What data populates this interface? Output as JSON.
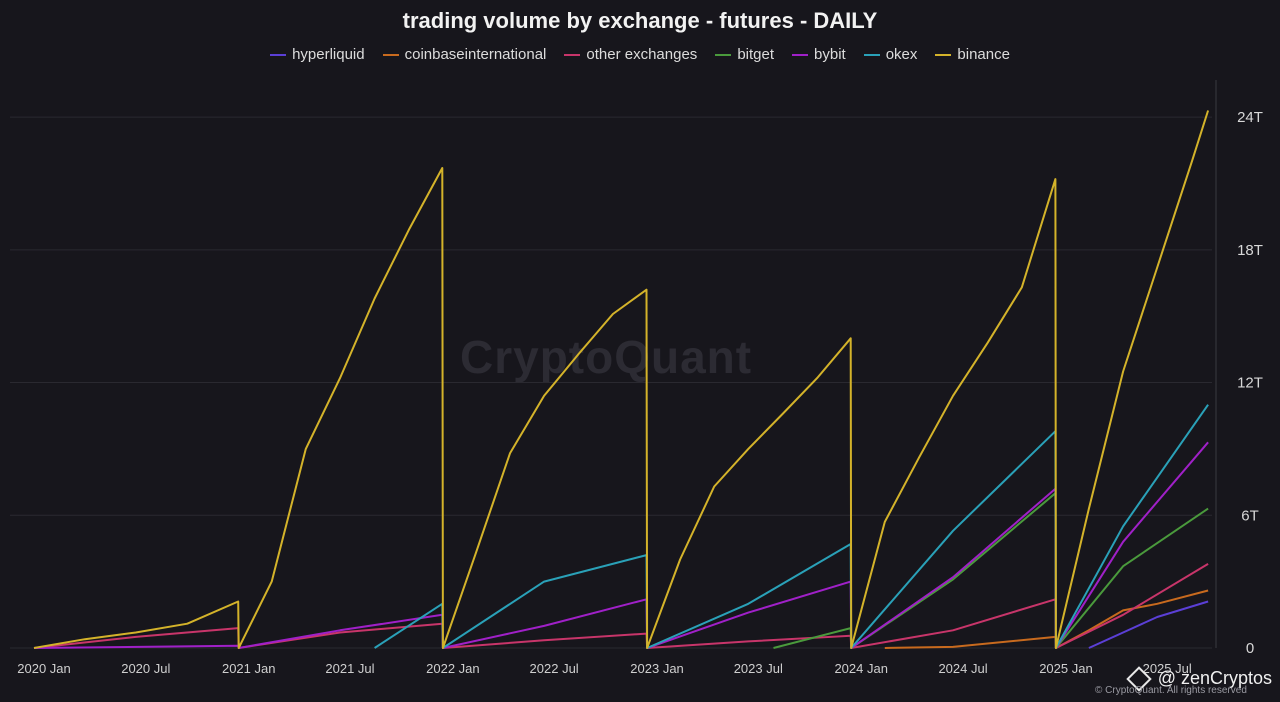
{
  "watermark": "CryptoQuant",
  "credit": {
    "handle": "@ zenCryptos",
    "copyright": "© CryptoQuant. All rights reserved"
  },
  "chart_data": {
    "type": "line",
    "title": "trading volume by exchange - futures - DAILY",
    "xlabel": "",
    "ylabel": "",
    "y_axis_position": "right",
    "legend_position": "top",
    "grid": true,
    "ylim": [
      0,
      25
    ],
    "y_ticks": [
      {
        "value": 0,
        "label": "0"
      },
      {
        "value": 6,
        "label": "6T"
      },
      {
        "value": 12,
        "label": "12T"
      },
      {
        "value": 18,
        "label": "18T"
      },
      {
        "value": 24,
        "label": "24T"
      }
    ],
    "xlim": [
      "2020-01-01",
      "2025-10-07"
    ],
    "x_ticks": [
      {
        "date": "2020-01-01",
        "label": "2020 Jan"
      },
      {
        "date": "2020-07-01",
        "label": "2020 Jul"
      },
      {
        "date": "2021-01-01",
        "label": "2021 Jan"
      },
      {
        "date": "2021-07-01",
        "label": "2021 Jul"
      },
      {
        "date": "2022-01-01",
        "label": "2022 Jan"
      },
      {
        "date": "2022-07-01",
        "label": "2022 Jul"
      },
      {
        "date": "2023-01-01",
        "label": "2023 Jan"
      },
      {
        "date": "2023-07-01",
        "label": "2023 Jul"
      },
      {
        "date": "2024-01-01",
        "label": "2024 Jan"
      },
      {
        "date": "2024-07-01",
        "label": "2024 Jul"
      },
      {
        "date": "2025-01-01",
        "label": "2025 Jan"
      },
      {
        "date": "2025-07-01",
        "label": "2025 Jul"
      }
    ],
    "series": [
      {
        "name": "hyperliquid",
        "color": "#5b3fd6",
        "points": [
          [
            "2025-03-01",
            0
          ],
          [
            "2025-05-01",
            0.7
          ],
          [
            "2025-07-01",
            1.4
          ],
          [
            "2025-09-30",
            2.1
          ]
        ]
      },
      {
        "name": "coinbaseinternational",
        "color": "#c86a1e",
        "points": [
          [
            "2024-03-01",
            0
          ],
          [
            "2024-07-01",
            0.05
          ],
          [
            "2024-12-31",
            0.5
          ],
          [
            "2025-01-01",
            0
          ],
          [
            "2025-03-01",
            0.8
          ],
          [
            "2025-05-01",
            1.7
          ],
          [
            "2025-07-01",
            2.0
          ],
          [
            "2025-09-30",
            2.6
          ]
        ]
      },
      {
        "name": "other exchanges",
        "color": "#c8356a",
        "points": [
          [
            "2020-01-01",
            0
          ],
          [
            "2020-07-01",
            0.5
          ],
          [
            "2020-12-31",
            0.9
          ],
          [
            "2021-01-01",
            0
          ],
          [
            "2021-07-01",
            0.7
          ],
          [
            "2021-12-31",
            1.1
          ],
          [
            "2022-01-01",
            0
          ],
          [
            "2022-07-01",
            0.35
          ],
          [
            "2022-12-31",
            0.65
          ],
          [
            "2023-01-01",
            0
          ],
          [
            "2023-07-01",
            0.3
          ],
          [
            "2023-12-31",
            0.55
          ],
          [
            "2024-01-01",
            0
          ],
          [
            "2024-07-01",
            0.8
          ],
          [
            "2024-12-31",
            2.2
          ],
          [
            "2025-01-01",
            0
          ],
          [
            "2025-05-01",
            1.5
          ],
          [
            "2025-09-30",
            3.8
          ]
        ]
      },
      {
        "name": "bitget",
        "color": "#4a9a3c",
        "points": [
          [
            "2023-08-15",
            0
          ],
          [
            "2023-12-31",
            0.9
          ],
          [
            "2024-01-01",
            0
          ],
          [
            "2024-07-01",
            3.1
          ],
          [
            "2024-12-31",
            7.0
          ],
          [
            "2025-01-01",
            0
          ],
          [
            "2025-05-01",
            3.7
          ],
          [
            "2025-09-30",
            6.3
          ]
        ]
      },
      {
        "name": "bybit",
        "color": "#a020c8",
        "points": [
          [
            "2020-01-01",
            0
          ],
          [
            "2020-12-31",
            0.1
          ],
          [
            "2021-01-01",
            0
          ],
          [
            "2021-07-01",
            0.8
          ],
          [
            "2021-12-31",
            1.5
          ],
          [
            "2022-01-01",
            0
          ],
          [
            "2022-07-01",
            1.0
          ],
          [
            "2022-12-31",
            2.2
          ],
          [
            "2023-01-01",
            0
          ],
          [
            "2023-07-01",
            1.6
          ],
          [
            "2023-12-31",
            3.0
          ],
          [
            "2024-01-01",
            0
          ],
          [
            "2024-07-01",
            3.2
          ],
          [
            "2024-12-31",
            7.2
          ],
          [
            "2025-01-01",
            0
          ],
          [
            "2025-05-01",
            4.8
          ],
          [
            "2025-09-30",
            9.3
          ]
        ]
      },
      {
        "name": "okex",
        "color": "#2aa1b8",
        "points": [
          [
            "2021-09-01",
            0
          ],
          [
            "2021-12-31",
            2.0
          ],
          [
            "2022-01-01",
            0
          ],
          [
            "2022-07-01",
            3.0
          ],
          [
            "2022-12-31",
            4.2
          ],
          [
            "2023-01-01",
            0
          ],
          [
            "2023-07-01",
            2.0
          ],
          [
            "2023-12-31",
            4.7
          ],
          [
            "2024-01-01",
            0
          ],
          [
            "2024-07-01",
            5.3
          ],
          [
            "2024-12-31",
            9.8
          ],
          [
            "2025-01-01",
            0
          ],
          [
            "2025-05-01",
            5.5
          ],
          [
            "2025-09-30",
            11.0
          ]
        ]
      },
      {
        "name": "binance",
        "color": "#d4b32a",
        "points": [
          [
            "2020-01-01",
            0
          ],
          [
            "2020-04-01",
            0.4
          ],
          [
            "2020-07-01",
            0.7
          ],
          [
            "2020-10-01",
            1.1
          ],
          [
            "2020-12-31",
            2.1
          ],
          [
            "2021-01-01",
            0
          ],
          [
            "2021-03-01",
            3.0
          ],
          [
            "2021-05-01",
            9.0
          ],
          [
            "2021-07-01",
            12.2
          ],
          [
            "2021-09-01",
            15.8
          ],
          [
            "2021-11-01",
            18.9
          ],
          [
            "2021-12-31",
            21.7
          ],
          [
            "2022-01-01",
            0
          ],
          [
            "2022-03-01",
            4.3
          ],
          [
            "2022-05-01",
            8.8
          ],
          [
            "2022-07-01",
            11.4
          ],
          [
            "2022-09-01",
            13.3
          ],
          [
            "2022-11-01",
            15.1
          ],
          [
            "2022-12-31",
            16.2
          ],
          [
            "2023-01-01",
            0
          ],
          [
            "2023-03-01",
            4.0
          ],
          [
            "2023-05-01",
            7.3
          ],
          [
            "2023-07-01",
            9.0
          ],
          [
            "2023-09-01",
            10.6
          ],
          [
            "2023-11-01",
            12.2
          ],
          [
            "2023-12-31",
            14.0
          ],
          [
            "2024-01-01",
            0
          ],
          [
            "2024-03-01",
            5.7
          ],
          [
            "2024-05-01",
            8.6
          ],
          [
            "2024-07-01",
            11.4
          ],
          [
            "2024-09-01",
            13.8
          ],
          [
            "2024-11-01",
            16.3
          ],
          [
            "2024-12-31",
            21.2
          ],
          [
            "2025-01-01",
            0
          ],
          [
            "2025-03-01",
            6.3
          ],
          [
            "2025-05-01",
            12.5
          ],
          [
            "2025-07-01",
            17.2
          ],
          [
            "2025-09-01",
            22.0
          ],
          [
            "2025-09-30",
            24.3
          ]
        ]
      }
    ]
  }
}
